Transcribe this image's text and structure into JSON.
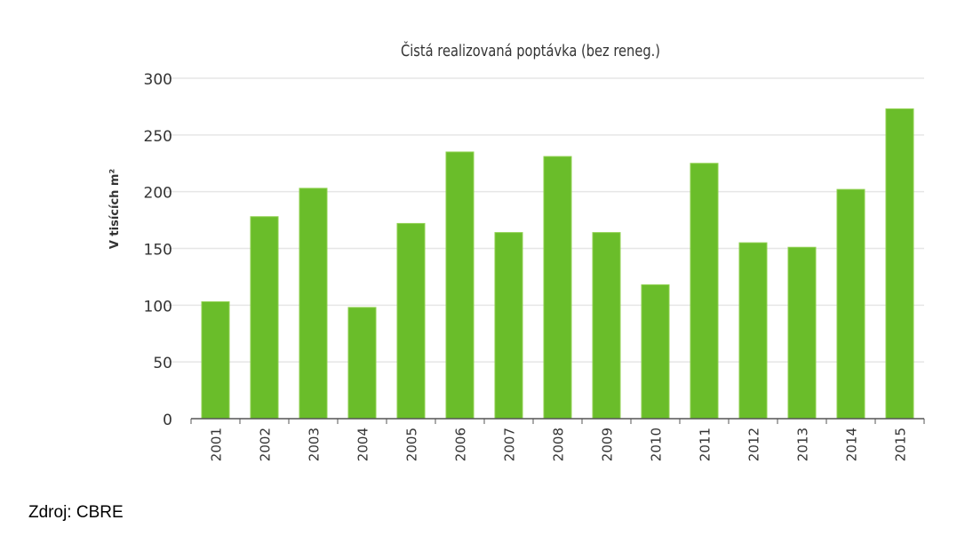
{
  "chart_data": {
    "type": "bar",
    "title": "Čistá realizovaná poptávka (bez reneg.)",
    "ylabel": "V tisících m²",
    "xlabel": "",
    "categories": [
      "2001",
      "2002",
      "2003",
      "2004",
      "2005",
      "2006",
      "2007",
      "2008",
      "2009",
      "2010",
      "2011",
      "2012",
      "2013",
      "2014",
      "2015"
    ],
    "values": [
      103,
      178,
      203,
      98,
      172,
      235,
      164,
      231,
      164,
      118,
      225,
      155,
      151,
      202,
      273
    ],
    "ylim": [
      0,
      300
    ],
    "yticks": [
      0,
      50,
      100,
      150,
      200,
      250,
      300
    ],
    "grid": true,
    "legend": "none",
    "bar_color": "#6abd2a"
  },
  "source": "Zdroj: CBRE"
}
